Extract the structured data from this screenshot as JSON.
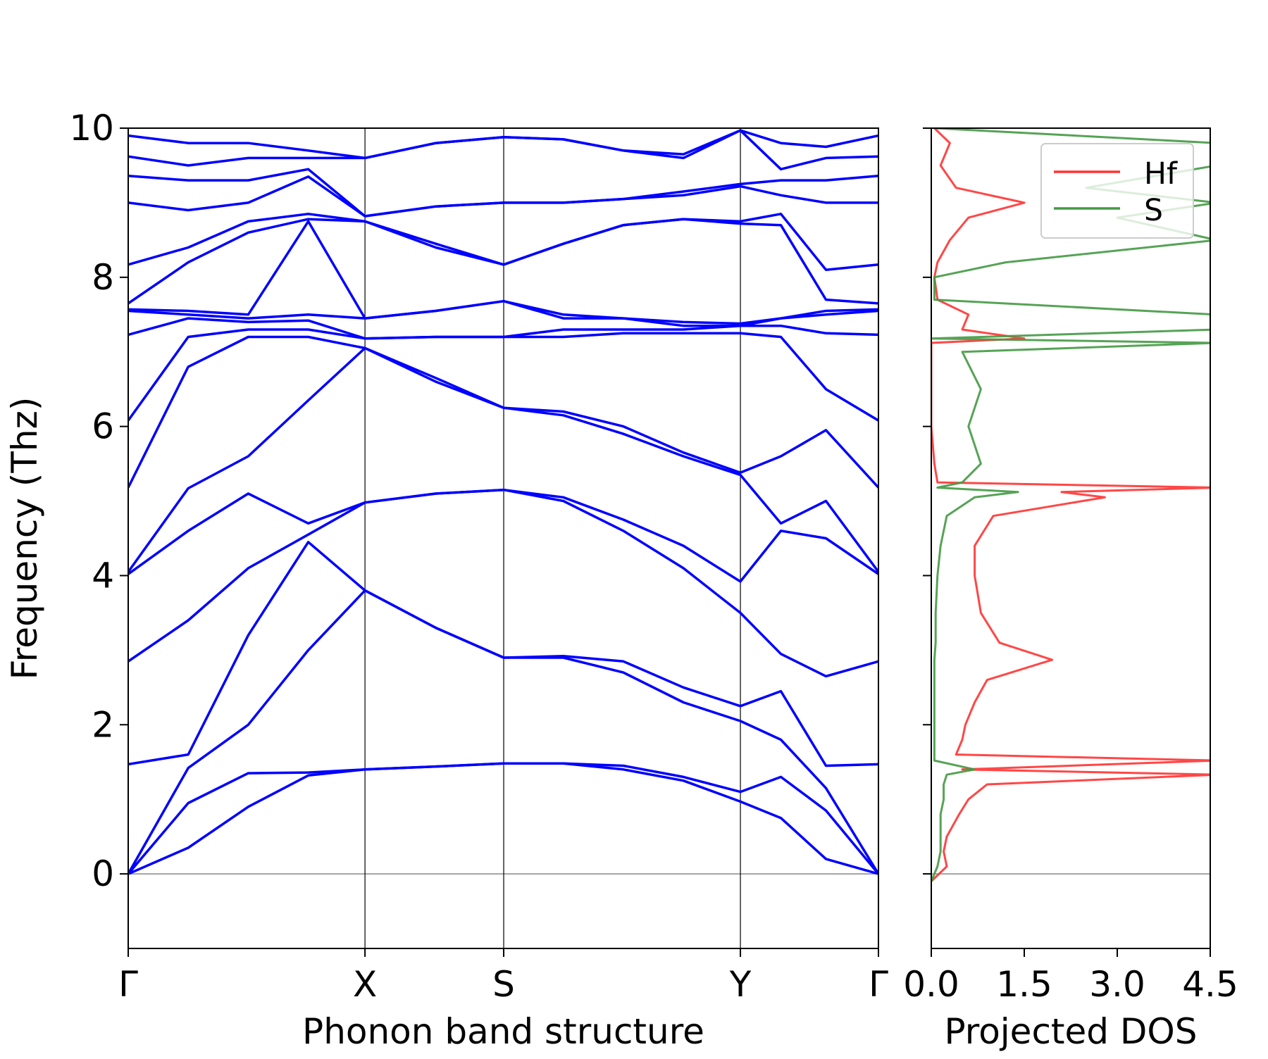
{
  "chart_data": [
    {
      "type": "line",
      "orientation": "vertical",
      "xlabel": "Phonon band structure",
      "ylabel": "Frequency (Thz)",
      "color": "#0000ff",
      "xlim": [
        0,
        1
      ],
      "ylim": [
        -1,
        10
      ],
      "yticks": [
        0,
        2,
        4,
        6,
        8,
        10
      ],
      "xticks": [
        {
          "value": 0,
          "label": "Γ"
        },
        {
          "value": 0.3156,
          "label": "X"
        },
        {
          "value": 0.5005,
          "label": "S"
        },
        {
          "value": 0.816,
          "label": "Y"
        },
        {
          "value": 1,
          "label": "Γ"
        }
      ],
      "xgrid": true,
      "zero_line": true,
      "x": [
        0,
        0.08,
        0.16,
        0.24,
        0.3156,
        0.41,
        0.5005,
        0.58,
        0.66,
        0.74,
        0.816,
        0.87,
        0.93,
        1
      ],
      "series": [
        {
          "values": [
            0,
            0.35,
            0.9,
            1.32,
            1.4,
            1.44,
            1.48,
            1.48,
            1.4,
            1.25,
            0.97,
            0.75,
            0.2,
            0
          ]
        },
        {
          "values": [
            0,
            0.95,
            1.35,
            1.36,
            1.4,
            1.44,
            1.48,
            1.48,
            1.45,
            1.3,
            1.1,
            1.3,
            0.85,
            0
          ]
        },
        {
          "values": [
            0,
            1.42,
            2.0,
            3.0,
            3.8,
            3.3,
            2.9,
            2.9,
            2.7,
            2.3,
            2.05,
            1.8,
            1.15,
            0
          ]
        },
        {
          "values": [
            1.47,
            1.6,
            3.2,
            4.45,
            3.8,
            3.3,
            2.9,
            2.92,
            2.85,
            2.5,
            2.25,
            2.45,
            1.45,
            1.47
          ]
        },
        {
          "values": [
            2.85,
            3.4,
            4.1,
            4.55,
            4.98,
            5.1,
            5.15,
            5.0,
            4.6,
            4.1,
            3.5,
            2.95,
            2.65,
            2.85
          ]
        },
        {
          "values": [
            4.02,
            4.6,
            5.1,
            4.7,
            4.98,
            5.1,
            5.15,
            5.05,
            4.75,
            4.4,
            3.92,
            4.6,
            4.5,
            4.02
          ]
        },
        {
          "values": [
            4.05,
            5.17,
            5.6,
            6.35,
            7.05,
            6.6,
            6.25,
            6.15,
            5.9,
            5.6,
            5.35,
            4.7,
            5.0,
            4.05
          ]
        },
        {
          "values": [
            5.18,
            6.8,
            7.2,
            7.2,
            7.05,
            6.65,
            6.25,
            6.2,
            6.0,
            5.65,
            5.38,
            5.6,
            5.95,
            5.18
          ]
        },
        {
          "values": [
            6.08,
            7.2,
            7.3,
            7.3,
            7.18,
            7.2,
            7.2,
            7.2,
            7.25,
            7.25,
            7.25,
            7.2,
            6.5,
            6.08
          ]
        },
        {
          "values": [
            7.23,
            7.45,
            7.4,
            7.42,
            7.18,
            7.2,
            7.2,
            7.3,
            7.3,
            7.3,
            7.35,
            7.35,
            7.25,
            7.23
          ]
        },
        {
          "values": [
            7.55,
            7.5,
            7.45,
            7.5,
            7.45,
            7.55,
            7.68,
            7.45,
            7.45,
            7.35,
            7.35,
            7.45,
            7.5,
            7.55
          ]
        },
        {
          "values": [
            7.57,
            7.55,
            7.5,
            8.75,
            7.45,
            7.55,
            7.68,
            7.5,
            7.45,
            7.4,
            7.38,
            7.45,
            7.55,
            7.57
          ]
        },
        {
          "values": [
            7.65,
            8.2,
            8.6,
            8.78,
            8.75,
            8.4,
            8.17,
            8.45,
            8.7,
            8.78,
            8.72,
            8.7,
            7.7,
            7.65
          ]
        },
        {
          "values": [
            8.17,
            8.4,
            8.75,
            8.85,
            8.75,
            8.45,
            8.17,
            8.45,
            8.7,
            8.78,
            8.75,
            8.85,
            8.1,
            8.17
          ]
        },
        {
          "values": [
            9.0,
            8.9,
            9.0,
            9.35,
            8.82,
            8.95,
            9.0,
            9.0,
            9.05,
            9.1,
            9.22,
            9.1,
            9.0,
            9.0
          ]
        },
        {
          "values": [
            9.36,
            9.3,
            9.3,
            9.45,
            8.82,
            8.95,
            9.0,
            9.0,
            9.05,
            9.15,
            9.25,
            9.3,
            9.3,
            9.36
          ]
        },
        {
          "values": [
            9.62,
            9.5,
            9.6,
            9.6,
            9.6,
            9.8,
            9.88,
            9.85,
            9.7,
            9.6,
            9.97,
            9.45,
            9.6,
            9.62
          ]
        },
        {
          "values": [
            9.9,
            9.8,
            9.8,
            9.7,
            9.6,
            9.8,
            9.88,
            9.85,
            9.7,
            9.65,
            9.97,
            9.8,
            9.75,
            9.9
          ]
        }
      ]
    },
    {
      "type": "line",
      "orientation": "horizontal",
      "xlabel": "Projected DOS",
      "xlim": [
        0,
        4.5
      ],
      "xticks": [
        {
          "value": 0,
          "label": "0.0"
        },
        {
          "value": 1.5,
          "label": "1.5"
        },
        {
          "value": 3,
          "label": "3.0"
        },
        {
          "value": 4.5,
          "label": "4.5"
        }
      ],
      "ylim": [
        -1,
        10
      ],
      "yticks": [
        0,
        2,
        4,
        6,
        8,
        10
      ],
      "ytick_labels": false,
      "zero_line": true,
      "legend": "upper right",
      "y": [
        -0.1,
        0.1,
        0.3,
        0.5,
        0.8,
        1.0,
        1.2,
        1.33,
        1.4,
        1.52,
        1.6,
        1.8,
        2.0,
        2.3,
        2.6,
        2.87,
        3.1,
        3.5,
        4.0,
        4.4,
        4.8,
        5.05,
        5.12,
        5.18,
        5.25,
        5.5,
        6.0,
        6.5,
        7.0,
        7.12,
        7.18,
        7.3,
        7.5,
        7.7,
        8.0,
        8.2,
        8.5,
        8.8,
        9.0,
        9.2,
        9.5,
        9.8,
        10.0
      ],
      "series": [
        {
          "name": "Hf",
          "color": "#ff3333",
          "values": [
            0.0,
            0.25,
            0.2,
            0.25,
            0.45,
            0.6,
            0.9,
            4.6,
            0.5,
            4.6,
            0.4,
            0.5,
            0.55,
            0.7,
            0.9,
            1.95,
            1.1,
            0.8,
            0.7,
            0.7,
            1.0,
            2.8,
            2.1,
            4.6,
            0.1,
            0.05,
            0.0,
            0.0,
            0.0,
            0.0,
            1.5,
            0.5,
            0.6,
            0.1,
            0.05,
            0.1,
            0.3,
            0.6,
            1.5,
            0.4,
            0.15,
            0.3,
            0.05
          ]
        },
        {
          "name": "S",
          "color": "#449944",
          "values": [
            0.0,
            0.1,
            0.15,
            0.15,
            0.15,
            0.2,
            0.2,
            0.25,
            0.7,
            0.05,
            0.05,
            0.05,
            0.05,
            0.05,
            0.05,
            0.05,
            0.07,
            0.07,
            0.1,
            0.15,
            0.25,
            0.7,
            1.4,
            0.1,
            0.5,
            0.8,
            0.6,
            0.8,
            0.5,
            4.6,
            0.0,
            4.6,
            4.6,
            0.05,
            0.05,
            1.2,
            4.6,
            3.0,
            4.6,
            2.5,
            4.6,
            4.6,
            0.05
          ]
        }
      ]
    }
  ]
}
